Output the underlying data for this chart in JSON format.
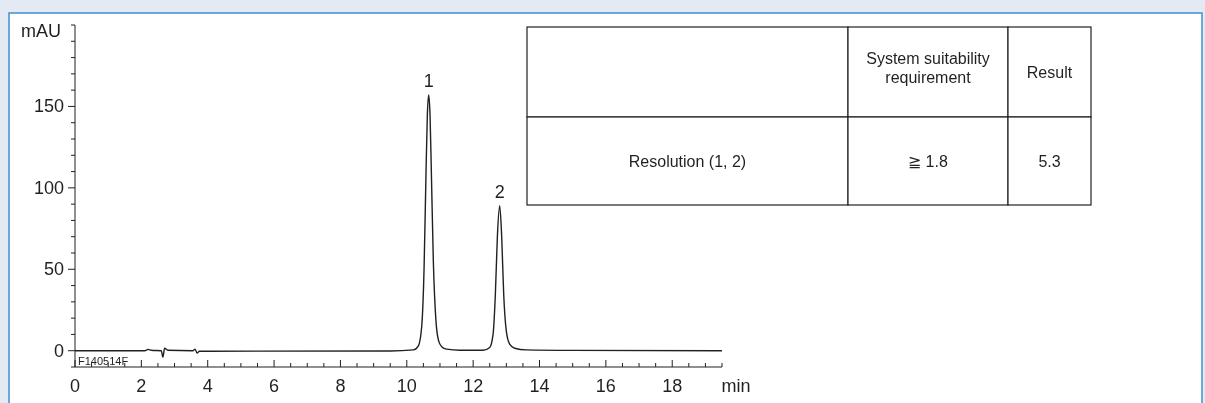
{
  "chart_data": {
    "type": "line",
    "xlabel": "min",
    "ylabel": "mAU",
    "xlim": [
      0,
      19.5
    ],
    "ylim": [
      -10,
      200
    ],
    "xticks": [
      0,
      {
        "value": 0.5,
        "label": null
      },
      {
        "value": 1,
        "label": null
      },
      {
        "value": 1.5,
        "label": null
      },
      2,
      {
        "value": 2.5,
        "label": null
      },
      {
        "value": 3,
        "label": null
      },
      {
        "value": 3.5,
        "label": null
      },
      4,
      {
        "value": 4.5,
        "label": null
      },
      {
        "value": 5,
        "label": null
      },
      {
        "value": 5.5,
        "label": null
      },
      6,
      {
        "value": 6.5,
        "label": null
      },
      {
        "value": 7,
        "label": null
      },
      {
        "value": 7.5,
        "label": null
      },
      8,
      {
        "value": 8.5,
        "label": null
      },
      {
        "value": 9,
        "label": null
      },
      {
        "value": 9.5,
        "label": null
      },
      10,
      {
        "value": 10.5,
        "label": null
      },
      {
        "value": 11,
        "label": null
      },
      {
        "value": 11.5,
        "label": null
      },
      12,
      {
        "value": 12.5,
        "label": null
      },
      {
        "value": 13,
        "label": null
      },
      {
        "value": 13.5,
        "label": null
      },
      14,
      {
        "value": 14.5,
        "label": null
      },
      {
        "value": 15,
        "label": null
      },
      {
        "value": 15.5,
        "label": null
      },
      16,
      {
        "value": 16.5,
        "label": null
      },
      {
        "value": 17,
        "label": null
      },
      {
        "value": 17.5,
        "label": null
      },
      18,
      {
        "value": 18.5,
        "label": null
      },
      {
        "value": 19,
        "label": null
      },
      {
        "value": 19.5,
        "label": null
      }
    ],
    "yticks": [
      {
        "value": -10,
        "label": null
      },
      0,
      {
        "value": 10,
        "label": null
      },
      {
        "value": 20,
        "label": null
      },
      {
        "value": 30,
        "label": null
      },
      {
        "value": 40,
        "label": null
      },
      50,
      {
        "value": 60,
        "label": null
      },
      {
        "value": 70,
        "label": null
      },
      {
        "value": 80,
        "label": null
      },
      {
        "value": 90,
        "label": null
      },
      100,
      {
        "value": 110,
        "label": null
      },
      {
        "value": 120,
        "label": null
      },
      {
        "value": 130,
        "label": null
      },
      {
        "value": 140,
        "label": null
      },
      150,
      {
        "value": 160,
        "label": null
      },
      {
        "value": 170,
        "label": null
      },
      {
        "value": 180,
        "label": null
      },
      {
        "value": 190,
        "label": null
      },
      {
        "value": 200,
        "label": null
      }
    ],
    "grid": false,
    "marker": "none",
    "line_style": "solid",
    "series": [
      {
        "color": "#231f20",
        "x": [
          0,
          2.1,
          2.2,
          2.3,
          2.6,
          2.65,
          2.7,
          2.8,
          3.55,
          3.62,
          3.68,
          3.75,
          4,
          9.5,
          10.2,
          10.35,
          10.45,
          10.52,
          10.58,
          10.62,
          10.66,
          10.7,
          10.74,
          10.8,
          10.88,
          10.96,
          11.05,
          11.2,
          11.6,
          12.3,
          12.5,
          12.6,
          12.67,
          12.73,
          12.8,
          12.86,
          12.92,
          13.0,
          13.1,
          13.25,
          13.6,
          15,
          19.5
        ],
        "values": [
          0,
          0,
          0.8,
          0.3,
          0,
          -4,
          1.5,
          0.3,
          0,
          1,
          -1.5,
          -0.3,
          -0.3,
          -0.2,
          0.5,
          3,
          15,
          50,
          110,
          145,
          157,
          145,
          110,
          55,
          18,
          6,
          2.5,
          1,
          0.3,
          0.3,
          2,
          10,
          35,
          70,
          89,
          70,
          35,
          12,
          4,
          1.5,
          0.5,
          0.2,
          0
        ]
      }
    ],
    "annotations": [
      {
        "text": "1",
        "x": 10.66,
        "y": 157
      },
      {
        "text": "2",
        "x": 12.8,
        "y": 89
      },
      "F140514F",
      "System  suitability requirement",
      "Result",
      "Resolution (1, 2)",
      "≧  1.8",
      "5.3"
    ]
  }
}
